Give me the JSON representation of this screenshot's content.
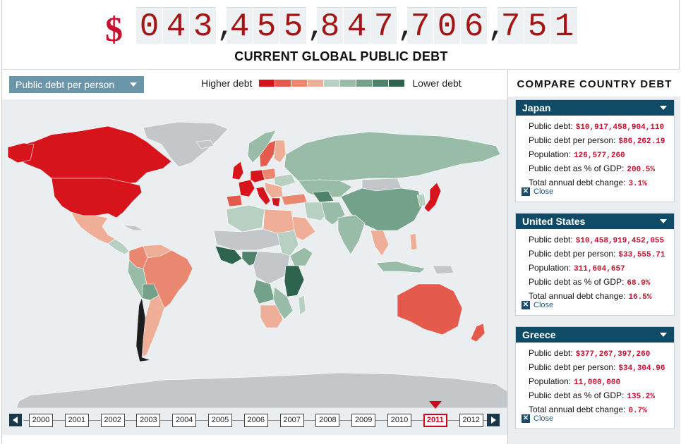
{
  "counter": {
    "currency": "$",
    "groups": [
      "043",
      "455",
      "847",
      "706",
      "751"
    ],
    "title": "CURRENT GLOBAL PUBLIC DEBT"
  },
  "map": {
    "metric_select": "Public debt per person",
    "legend": {
      "high_label": "Higher debt",
      "low_label": "Lower debt",
      "swatches": [
        "#d7131b",
        "#e45a4d",
        "#ea8771",
        "#efae98",
        "#b8d0c2",
        "#99bca8",
        "#74a18a",
        "#4f826b",
        "#2e634e"
      ]
    }
  },
  "timeline": {
    "years": [
      "2000",
      "2001",
      "2002",
      "2003",
      "2004",
      "2005",
      "2006",
      "2007",
      "2008",
      "2009",
      "2010",
      "2011",
      "2012"
    ],
    "active_year": "2011"
  },
  "sidebar": {
    "title": "COMPARE COUNTRY DEBT",
    "close_label": "Close",
    "labels": {
      "debt": "Public debt:",
      "per_person": "Public debt per person:",
      "population": "Population:",
      "pct_gdp": "Public debt as % of GDP:",
      "change": "Total annual debt change:"
    },
    "cards": [
      {
        "country": "Japan",
        "debt": "$10,917,458,904,110",
        "per_person": "$86,262.19",
        "population": "126,577,260",
        "pct_gdp": "200.5%",
        "change": "3.1%"
      },
      {
        "country": "United States",
        "debt": "$10,458,919,452,055",
        "per_person": "$33,555.71",
        "population": "311,604,657",
        "pct_gdp": "68.9%",
        "change": "16.5%"
      },
      {
        "country": "Greece",
        "debt": "$377,267,397,260",
        "per_person": "$34,304.96",
        "population": "11,000,000",
        "pct_gdp": "135.2%",
        "change": "0.7%"
      }
    ]
  }
}
